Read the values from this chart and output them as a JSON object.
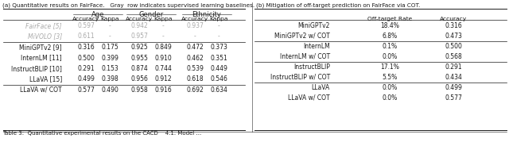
{
  "subtitle_a": "(a) Quantitative results on FairFace.   Gray  row indicates supervised learning baselines.",
  "subtitle_b": "(b) Mitigation of off-target prediction on FairFace via COT.",
  "caption": "Table 3:  Quantitative experimental results on the CACD    4.1. Model ...",
  "table_a": {
    "col_groups": [
      "Age",
      "Gender",
      "Ethnicity"
    ],
    "col_headers": [
      "Accuracy",
      "Kappa",
      "Accuracy",
      "Kappa",
      "Accuracy",
      "Kappa"
    ],
    "rows": [
      {
        "label": "FairFace [5]",
        "values": [
          "0.597",
          "-",
          "0.942",
          "-",
          "0.937",
          "-"
        ],
        "gray": true,
        "bold": false
      },
      {
        "label": "MiVOLO [3]",
        "values": [
          "0.611",
          "-",
          "0.957",
          "-",
          "-",
          "-"
        ],
        "gray": true,
        "bold": false
      },
      {
        "label": "MiniGPTv2 [9]",
        "values": [
          "0.316",
          "0.175",
          "0.925",
          "0.849",
          "0.472",
          "0.373"
        ],
        "gray": false,
        "bold": false
      },
      {
        "label": "InternLM [11]",
        "values": [
          "0.500",
          "0.399",
          "0.955",
          "0.910",
          "0.462",
          "0.351"
        ],
        "gray": false,
        "bold": false
      },
      {
        "label": "InstructBLIP [10]",
        "values": [
          "0.291",
          "0.153",
          "0.874",
          "0.744",
          "0.539",
          "0.449"
        ],
        "gray": false,
        "bold": false
      },
      {
        "label": "LLaVA [15]",
        "values": [
          "0.499",
          "0.398",
          "0.956",
          "0.912",
          "0.618",
          "0.546"
        ],
        "gray": false,
        "bold": false
      },
      {
        "label": "LLaVA w/ COT",
        "values": [
          "0.577",
          "0.490",
          "0.958",
          "0.916",
          "0.692",
          "0.634"
        ],
        "gray": false,
        "bold": false
      }
    ]
  },
  "table_b": {
    "col_headers": [
      "Off-target Rate",
      "Accuracy"
    ],
    "rows": [
      {
        "label": "MiniGPTv2",
        "values": [
          "18.4%",
          "0.316"
        ]
      },
      {
        "label": "MiniGPTv2 w/ COT",
        "values": [
          "6.8%",
          "0.473"
        ]
      },
      {
        "label": "InternLM",
        "values": [
          "0.1%",
          "0.500"
        ]
      },
      {
        "label": "InternLM w/ COT",
        "values": [
          "0.0%",
          "0.568"
        ]
      },
      {
        "label": "InstructBLIP",
        "values": [
          "17.1%",
          "0.291"
        ]
      },
      {
        "label": "InstructBLIP w/ COT",
        "values": [
          "5.5%",
          "0.434"
        ]
      },
      {
        "label": "LLaVA",
        "values": [
          "0.0%",
          "0.499"
        ]
      },
      {
        "label": "LLaVA w/ COT",
        "values": [
          "0.0%",
          "0.577"
        ]
      }
    ]
  },
  "gray_color": "#aaaaaa",
  "text_color": "#1a1a1a",
  "line_color": "#555555",
  "highlight_gray": "#e8e8e8"
}
